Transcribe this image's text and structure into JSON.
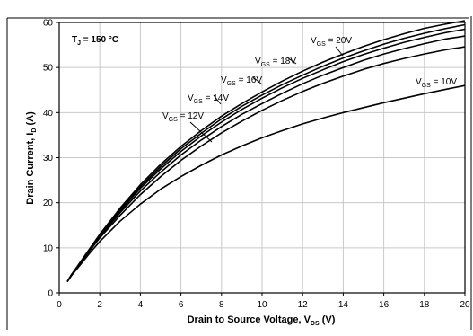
{
  "chart_data": {
    "type": "line",
    "annotation": {
      "main": "T",
      "sub": "J",
      "rest": " = 150 °C"
    },
    "xlabel": {
      "main": "Drain to Source Voltage, V",
      "sub": "DS",
      "tail": " (V)"
    },
    "ylabel": {
      "main": "Drain Current, I",
      "sub": "D",
      "tail": " (A)"
    },
    "xlim": [
      0,
      20
    ],
    "ylim": [
      0,
      60
    ],
    "xticks": [
      "0",
      "2",
      "4",
      "6",
      "8",
      "10",
      "12",
      "14",
      "16",
      "18",
      "20"
    ],
    "yticks": [
      "0",
      "10",
      "20",
      "30",
      "40",
      "50",
      "60"
    ],
    "grid": true,
    "x": [
      0.4,
      0.6,
      1,
      1.5,
      2,
      3,
      4,
      5,
      6,
      7,
      8,
      9,
      10,
      11,
      12,
      13,
      14,
      15,
      16,
      17,
      18,
      19,
      20
    ],
    "series": [
      {
        "label_main": "V",
        "label_sub": "GS",
        "label_rest": " = 20V",
        "values": [
          2.5,
          4,
          6.6,
          9.8,
          13,
          18.8,
          24,
          28.5,
          32.5,
          36,
          39.2,
          42,
          44.6,
          47,
          49.2,
          51.2,
          53,
          54.7,
          56.2,
          57.5,
          58.7,
          59.6,
          60.4
        ]
      },
      {
        "label_main": "V",
        "label_sub": "GS",
        "label_rest": " = 18V",
        "values": [
          2.5,
          4,
          6.5,
          9.7,
          12.9,
          18.5,
          23.6,
          28,
          32,
          35.4,
          38.6,
          41.4,
          43.9,
          46.2,
          48.3,
          50.3,
          52.1,
          53.7,
          55.2,
          56.5,
          57.6,
          58.6,
          59.5
        ]
      },
      {
        "label_main": "V",
        "label_sub": "GS",
        "label_rest": " = 16V",
        "values": [
          2.5,
          4,
          6.5,
          9.6,
          12.7,
          18.2,
          23.2,
          27.5,
          31.4,
          34.8,
          37.9,
          40.7,
          43.2,
          45.5,
          47.6,
          49.5,
          51.3,
          52.9,
          54.3,
          55.6,
          56.7,
          57.7,
          58.5
        ]
      },
      {
        "label_main": "V",
        "label_sub": "GS",
        "label_rest": " = 14V",
        "values": [
          2.5,
          4,
          6.4,
          9.5,
          12.5,
          17.8,
          22.6,
          26.8,
          30.6,
          33.9,
          36.9,
          39.6,
          42,
          44.3,
          46.4,
          48.3,
          50,
          51.6,
          53,
          54.2,
          55.3,
          56.3,
          57
        ]
      },
      {
        "label_main": "V",
        "label_sub": "GS",
        "label_rest": " = 12V",
        "values": [
          2.5,
          4,
          6.3,
          9.3,
          12.2,
          17.2,
          21.8,
          25.8,
          29.4,
          32.6,
          35.5,
          38.1,
          40.5,
          42.7,
          44.7,
          46.5,
          48.1,
          49.6,
          50.9,
          52,
          53,
          53.9,
          54.6
        ]
      },
      {
        "label_main": "V",
        "label_sub": "GS",
        "label_rest": " = 10V",
        "values": [
          2.5,
          3.8,
          6,
          8.8,
          11.4,
          15.9,
          19.7,
          23,
          25.8,
          28.3,
          30.6,
          32.6,
          34.4,
          36,
          37.5,
          38.8,
          40,
          41.1,
          42.2,
          43.2,
          44.2,
          45.1,
          46
        ]
      }
    ]
  }
}
